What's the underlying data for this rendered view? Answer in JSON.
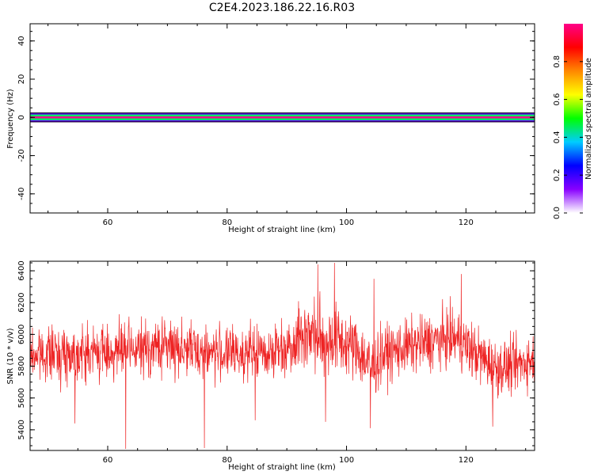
{
  "figure": {
    "title": "C2E4.2023.186.22.16.R03"
  },
  "colors": {
    "snr_line": "#ee2222",
    "colormap": [
      "#ffffff",
      "#8800ff",
      "#0000ff",
      "#00ccff",
      "#00ff00",
      "#ffff00",
      "#ff8800",
      "#ff0000",
      "#ff0088"
    ]
  },
  "chart_data": [
    {
      "type": "heatmap",
      "title": "",
      "xlabel": "Height of straight line (km)",
      "ylabel": "Frequency (Hz)",
      "xlim": [
        47,
        131.5
      ],
      "ylim": [
        -50,
        49
      ],
      "xticks": [
        60,
        80,
        100,
        120
      ],
      "yticks": [
        -40,
        -20,
        0,
        20,
        40
      ],
      "colorbar": {
        "label": "Normalized spectral amplitude",
        "range": [
          0.0,
          1.0
        ],
        "ticks": [
          0.0,
          0.2,
          0.4,
          0.6,
          0.8
        ]
      },
      "bands": [
        {
          "name": "",
          "freq_halfwidth_hz": 0.5,
          "level": 1.0
        },
        {
          "name": "",
          "freq_halfwidth_hz": 1.5,
          "level": 0.45
        },
        {
          "name": "",
          "freq_halfwidth_hz": 2.5,
          "level": 0.15
        }
      ],
      "blobs": [
        {
          "x_from": 47,
          "x_to": 49,
          "level": 0.12
        },
        {
          "x_from": 52,
          "x_to": 58,
          "level": 0.12
        },
        {
          "x_from": 61,
          "x_to": 67,
          "level": 0.08
        },
        {
          "x_from": 69,
          "x_to": 86,
          "level": 0.15
        },
        {
          "x_from": 75,
          "x_to": 79,
          "level": 0.2
        },
        {
          "x_from": 88,
          "x_to": 96,
          "level": 0.07
        },
        {
          "x_from": 113,
          "x_to": 116,
          "level": 0.06
        },
        {
          "x_from": 119,
          "x_to": 123,
          "level": 0.12
        }
      ]
    },
    {
      "type": "line",
      "title": "",
      "xlabel": "Height of straight line (km)",
      "ylabel": "SNR (10 * v/v)",
      "xlim": [
        47,
        131.5
      ],
      "ylim": [
        5270,
        6460
      ],
      "xticks": [
        60,
        80,
        100,
        120
      ],
      "yticks": [
        5400,
        5600,
        5800,
        6000,
        6200,
        6400
      ],
      "series": [
        {
          "name": "",
          "n_points": 1700,
          "seed": 7,
          "envelope_x": [
            47,
            50,
            55,
            60,
            65,
            70,
            75,
            80,
            85,
            88,
            90,
            92,
            94,
            96,
            98,
            100,
            102,
            104,
            106,
            110,
            115,
            118,
            120,
            122,
            125,
            128,
            131.5
          ],
          "envelope_mean": [
            5870,
            5880,
            5880,
            5890,
            5900,
            5930,
            5900,
            5880,
            5880,
            5900,
            5920,
            5990,
            6010,
            5950,
            5970,
            5940,
            5900,
            5790,
            5870,
            5920,
            5960,
            5980,
            5930,
            5870,
            5790,
            5800,
            5850
          ],
          "envelope_spread": [
            80,
            80,
            85,
            85,
            85,
            90,
            85,
            80,
            80,
            90,
            95,
            100,
            110,
            120,
            110,
            100,
            100,
            110,
            90,
            85,
            90,
            90,
            90,
            90,
            85,
            85,
            85
          ],
          "spikes": [
            {
              "x": 54.5,
              "y": 5440
            },
            {
              "x": 63.0,
              "y": 5280
            },
            {
              "x": 76.2,
              "y": 5285
            },
            {
              "x": 84.7,
              "y": 5460
            },
            {
              "x": 95.2,
              "y": 6440
            },
            {
              "x": 96.5,
              "y": 5450
            },
            {
              "x": 98.0,
              "y": 6450
            },
            {
              "x": 104.0,
              "y": 5410
            },
            {
              "x": 104.6,
              "y": 6350
            },
            {
              "x": 119.2,
              "y": 6380
            },
            {
              "x": 124.5,
              "y": 5420
            }
          ]
        }
      ]
    }
  ]
}
